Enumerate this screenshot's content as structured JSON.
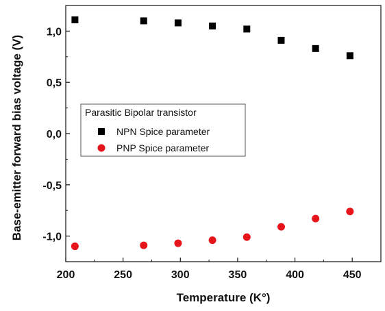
{
  "chart_data": {
    "type": "scatter",
    "xlabel": "Temperature (K°)",
    "ylabel": "Base-emitter forward bias voltage  (V)",
    "xlim": [
      200,
      475
    ],
    "ylim": [
      -1.25,
      1.25
    ],
    "x_ticks": [
      200,
      250,
      300,
      350,
      400,
      450
    ],
    "x_tick_labels": [
      "200",
      "250",
      "300",
      "350",
      "400",
      "450"
    ],
    "y_ticks": [
      1.0,
      0.5,
      0.0,
      -0.5,
      -1.0
    ],
    "y_tick_labels": [
      "1,0",
      "0,5",
      "0,0",
      "-0,5",
      "-1,0"
    ],
    "grid": false,
    "legend": {
      "title": "Parasitic Bipolar transistor",
      "placement": "center-left"
    },
    "series": [
      {
        "name": "NPN Spice parameter",
        "marker": "square",
        "color": "#000000",
        "x": [
          208,
          268,
          298,
          328,
          358,
          388,
          418,
          448
        ],
        "y": [
          1.11,
          1.1,
          1.08,
          1.05,
          1.02,
          0.91,
          0.83,
          0.76
        ]
      },
      {
        "name": "PNP Spice parameter",
        "marker": "circle",
        "color": "#e8141c",
        "x": [
          208,
          268,
          298,
          328,
          358,
          388,
          418,
          448
        ],
        "y": [
          -1.1,
          -1.09,
          -1.07,
          -1.04,
          -1.01,
          -0.91,
          -0.83,
          -0.76
        ]
      }
    ]
  }
}
